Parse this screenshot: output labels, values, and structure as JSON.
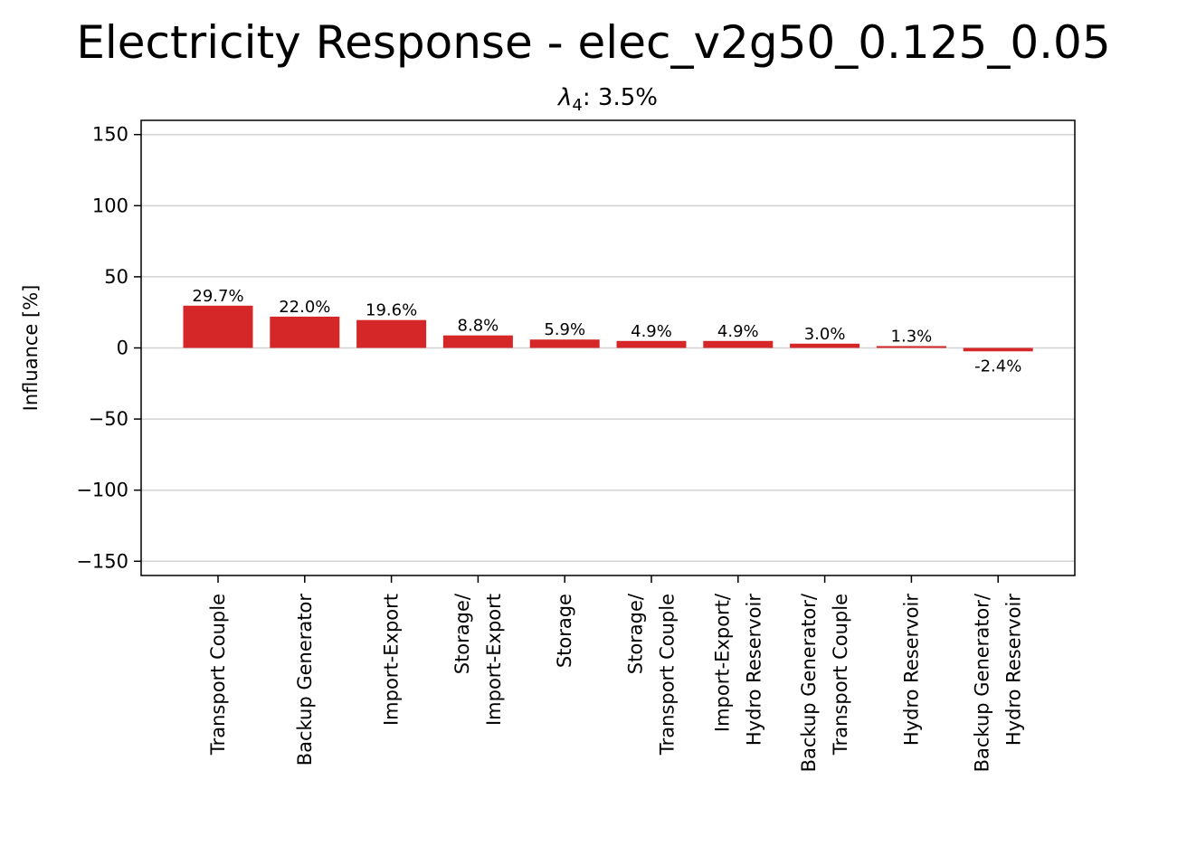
{
  "chart_data": {
    "type": "bar",
    "title": "Electricity Response - elec_v2g50_0.125_0.05",
    "subtitle_symbol": "λ",
    "subtitle_subscript": "4",
    "subtitle_value": ": 3.5%",
    "xlabel": "",
    "ylabel": "Influance [%]",
    "ylim": [
      -160,
      160
    ],
    "yticks": [
      -150,
      -100,
      -50,
      0,
      50,
      100,
      150
    ],
    "ytick_labels": [
      "−150",
      "−100",
      "−50",
      "0",
      "50",
      "100",
      "150"
    ],
    "grid": "horizontal",
    "bar_color": "#d62728",
    "categories": [
      [
        "Transport Couple"
      ],
      [
        "Backup Generator"
      ],
      [
        "Import-Export"
      ],
      [
        "Storage/",
        "Import-Export"
      ],
      [
        "Storage"
      ],
      [
        "Storage/",
        "Transport Couple"
      ],
      [
        "Import-Export/",
        "Hydro Reservoir"
      ],
      [
        "Backup Generator/",
        "Transport Couple"
      ],
      [
        "Hydro Reservoir"
      ],
      [
        "Backup Generator/",
        "Hydro Reservoir"
      ]
    ],
    "values": [
      29.7,
      22.0,
      19.6,
      8.8,
      5.9,
      4.9,
      4.9,
      3.0,
      1.3,
      -2.4
    ],
    "data_labels": [
      "29.7%",
      "22.0%",
      "19.6%",
      "8.8%",
      "5.9%",
      "4.9%",
      "4.9%",
      "3.0%",
      "1.3%",
      "-2.4%"
    ]
  }
}
